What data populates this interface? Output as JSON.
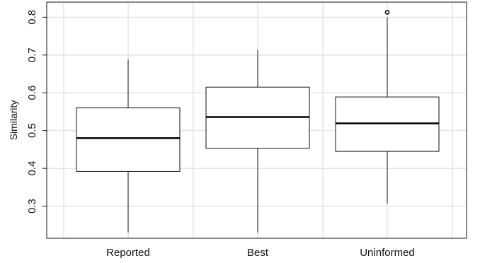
{
  "chart_data": {
    "type": "box",
    "categories": [
      "Reported",
      "Best",
      "Uninformed"
    ],
    "boxes": [
      {
        "min": 0.23,
        "q1": 0.392,
        "median": 0.48,
        "q3": 0.56,
        "max": 0.688,
        "outliers": []
      },
      {
        "min": 0.23,
        "q1": 0.453,
        "median": 0.536,
        "q3": 0.615,
        "max": 0.714,
        "outliers": []
      },
      {
        "min": 0.307,
        "q1": 0.445,
        "median": 0.519,
        "q3": 0.589,
        "max": 0.8,
        "outliers": [
          0.813
        ]
      }
    ],
    "xlabel": "",
    "ylabel": "Similarity",
    "ylim": [
      0.215,
      0.84
    ],
    "yticks": [
      0.3,
      0.4,
      0.5,
      0.6,
      0.7,
      0.8
    ],
    "ytick_labels": [
      "0.3",
      "0.4",
      "0.5",
      "0.6",
      "0.7",
      "0.8"
    ],
    "grid": true,
    "colors": {
      "grid": "#d9d9d9",
      "box_stroke": "#111111",
      "median": "#000000",
      "background": "#ffffff"
    }
  }
}
